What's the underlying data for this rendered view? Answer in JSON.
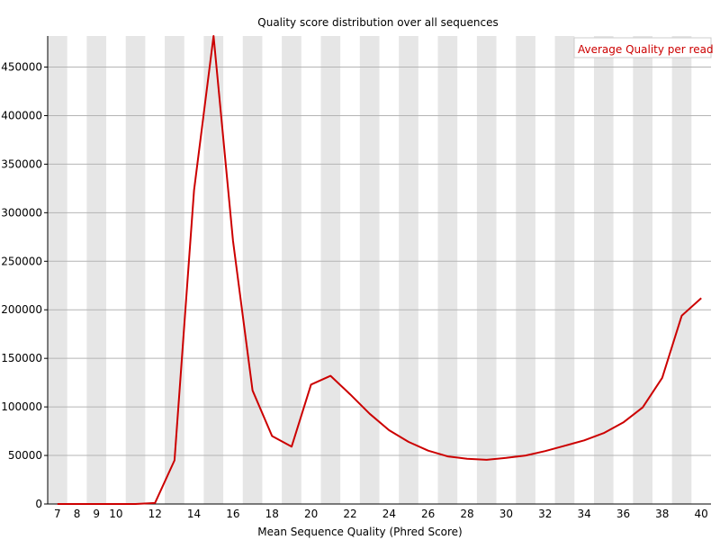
{
  "colors": {
    "series": "#cc0000",
    "band": "#e6e6e6",
    "grid": "#b4b4b4",
    "axis": "#000000",
    "legend_border": "#cccccc",
    "background": "#ffffff"
  },
  "chart_data": {
    "type": "line",
    "title": "Quality score distribution over all sequences",
    "xlabel": "Mean Sequence Quality (Phred Score)",
    "ylabel": "",
    "x_categories": [
      7,
      8,
      9,
      10,
      11,
      12,
      13,
      14,
      15,
      16,
      17,
      18,
      19,
      20,
      21,
      22,
      23,
      24,
      25,
      26,
      27,
      28,
      29,
      30,
      31,
      32,
      33,
      34,
      35,
      36,
      37,
      38,
      39,
      40
    ],
    "x_tick_labels": [
      "7",
      "8",
      "9",
      "10",
      "",
      "12",
      "",
      "14",
      "",
      "16",
      "",
      "18",
      "",
      "20",
      "",
      "22",
      "",
      "24",
      "",
      "26",
      "",
      "28",
      "",
      "30",
      "",
      "32",
      "",
      "34",
      "",
      "36",
      "",
      "38",
      "",
      "40"
    ],
    "y_ticks": [
      0,
      50000,
      100000,
      150000,
      200000,
      250000,
      300000,
      350000,
      400000,
      450000
    ],
    "y_tick_labels": [
      "0",
      "50000",
      "100000",
      "150000",
      "200000",
      "250000",
      "300000",
      "350000",
      "400000",
      "450000"
    ],
    "ylim": [
      0,
      482000
    ],
    "grid": true,
    "legend_position": "top-right",
    "series": [
      {
        "name": "Average Quality per read",
        "x": [
          7,
          8,
          9,
          10,
          11,
          12,
          13,
          14,
          15,
          16,
          17,
          18,
          19,
          20,
          21,
          22,
          23,
          24,
          25,
          26,
          27,
          28,
          29,
          30,
          31,
          32,
          33,
          34,
          35,
          36,
          37,
          38,
          39,
          40
        ],
        "values": [
          0,
          0,
          0,
          0,
          0,
          1000,
          45000,
          323000,
          482000,
          271000,
          117000,
          70000,
          59000,
          123000,
          132000,
          113000,
          93000,
          76000,
          64000,
          55000,
          49000,
          46500,
          45500,
          47500,
          50000,
          54500,
          60000,
          65500,
          73000,
          84000,
          99500,
          130000,
          194000,
          212000
        ]
      }
    ]
  }
}
